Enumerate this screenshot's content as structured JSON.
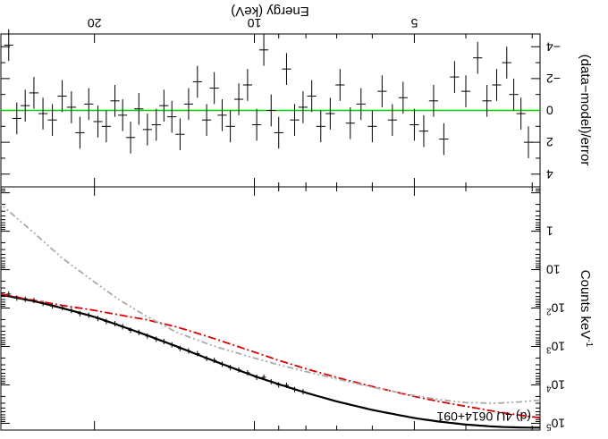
{
  "figure": {
    "annotation": "(d) 4U 0614+091",
    "orientation": "rotated-180"
  },
  "colors": {
    "data": "#000000",
    "model_total": "#000000",
    "model_component_red": "#dd0000",
    "model_component_gray": "#aaaaaa",
    "zero_line": "#00cc00"
  },
  "chart_data": [
    {
      "type": "line",
      "panel": "spectrum",
      "xlabel": "Energy (keV)",
      "ylabel": "Counts keV",
      "ylabel_exponent": "-1",
      "xscale": "log",
      "yscale": "log",
      "xlim": [
        2.9,
        30
      ],
      "ylim": [
        0.07,
        150000
      ],
      "x_ticks": [
        {
          "value": 5,
          "label": "5"
        },
        {
          "value": 10,
          "label": "10"
        },
        {
          "value": 20,
          "label": "20"
        }
      ],
      "y_ticks": [
        {
          "value": 1,
          "label": "1"
        },
        {
          "value": 10,
          "label": "10"
        },
        {
          "value": 100,
          "label": "10",
          "exp": "2"
        },
        {
          "value": 1000,
          "label": "10",
          "exp": "3"
        },
        {
          "value": 10000,
          "label": "10",
          "exp": "4"
        },
        {
          "value": 100000,
          "label": "10",
          "exp": "5"
        }
      ],
      "series": [
        {
          "role": "total-model",
          "style": "solid",
          "x": [
            2.9,
            3.0,
            3.2,
            3.4,
            3.6,
            4.0,
            4.5,
            5.0,
            6.0,
            7.0,
            8.0,
            9.0,
            10.0,
            12.0,
            14.0,
            16.0,
            18.0,
            20.0,
            23.0,
            26.0,
            30.0
          ],
          "y": [
            130000,
            130000,
            128000,
            125000,
            120000,
            108000,
            90000,
            73000,
            45000,
            27000,
            16000,
            9600,
            5900,
            2300,
            1000,
            500,
            280,
            170,
            100,
            66,
            45
          ]
        },
        {
          "role": "component-1",
          "style": "dash-dot",
          "color_key": "model_component_red",
          "x": [
            2.9,
            3.2,
            3.5,
            4.0,
            4.5,
            5.0,
            6.0,
            7.0,
            8.0,
            9.0,
            10.0,
            12.0,
            14.0,
            16.0,
            18.0,
            20.0,
            23.0,
            26.0,
            30.0
          ],
          "y": [
            72000,
            60000,
            50000,
            36000,
            27000,
            20000,
            11000,
            6400,
            3800,
            2300,
            1400,
            600,
            310,
            200,
            150,
            115,
            85,
            63,
            43
          ]
        },
        {
          "role": "component-2",
          "style": "dash-dot-dot",
          "color_key": "model_component_gray",
          "x": [
            2.9,
            3.2,
            3.5,
            4.0,
            4.5,
            5.0,
            6.0,
            7.0,
            8.0,
            9.0,
            10.0,
            12.0,
            14.0,
            16.0,
            18.0,
            20.0,
            23.0,
            26.0,
            30.0
          ],
          "y": [
            25000,
            28000,
            30000,
            29000,
            24000,
            19000,
            11500,
            7000,
            4500,
            3000,
            2000,
            950,
            430,
            160,
            60,
            21,
            5,
            1.1,
            0.2
          ]
        }
      ]
    },
    {
      "type": "scatter",
      "panel": "residuals",
      "xlabel": "Energy (keV)",
      "ylabel": "(data−model)/error",
      "xscale": "log",
      "xlim": [
        2.9,
        30
      ],
      "ylim": [
        -4.8,
        4.8
      ],
      "x_ticks": [
        {
          "value": 5,
          "label": "5"
        },
        {
          "value": 10,
          "label": "10"
        },
        {
          "value": 20,
          "label": "20"
        }
      ],
      "y_ticks": [
        {
          "value": -4,
          "label": "−4"
        },
        {
          "value": -2,
          "label": "−2"
        },
        {
          "value": 0,
          "label": "0"
        },
        {
          "value": 2,
          "label": "2"
        },
        {
          "value": 4,
          "label": "4"
        }
      ],
      "zero_line": true,
      "residuals": {
        "x": [
          3.05,
          3.15,
          3.25,
          3.35,
          3.5,
          3.65,
          3.8,
          4.0,
          4.2,
          4.4,
          4.6,
          4.8,
          5.0,
          5.25,
          5.5,
          5.75,
          6.0,
          6.3,
          6.6,
          6.9,
          7.2,
          7.5,
          7.8,
          8.1,
          8.4,
          8.7,
          9.0,
          9.3,
          9.6,
          9.9,
          10.3,
          10.7,
          11.1,
          11.5,
          11.9,
          12.3,
          12.8,
          13.3,
          13.8,
          14.3,
          14.8,
          15.3,
          15.9,
          16.5,
          17.1,
          17.7,
          18.3,
          19.0,
          19.7,
          20.5,
          21.3,
          22.1,
          23.0,
          24.0,
          25.0,
          26.0,
          27.0,
          28.0,
          29.0
        ],
        "y": [
          2.0,
          0.2,
          -1.0,
          -3.0,
          -1.6,
          -0.6,
          -3.3,
          -1.2,
          -2.1,
          1.8,
          -0.6,
          1.3,
          0.9,
          -0.8,
          0.6,
          -1.2,
          1.0,
          -0.4,
          0.8,
          -1.6,
          0.2,
          1.0,
          -0.9,
          -0.2,
          0.6,
          -2.6,
          1.4,
          0.0,
          -3.8,
          0.9,
          -1.6,
          -0.7,
          1.0,
          0.3,
          -1.4,
          0.6,
          -1.8,
          -0.4,
          1.5,
          0.4,
          -0.3,
          0.9,
          1.2,
          -0.1,
          1.7,
          0.3,
          -0.6,
          1.0,
          0.7,
          -0.4,
          1.4,
          -0.2,
          -0.9,
          0.6,
          0.2,
          -1.1,
          -0.3,
          0.5,
          -4.1
        ],
        "err": 1
      }
    }
  ]
}
